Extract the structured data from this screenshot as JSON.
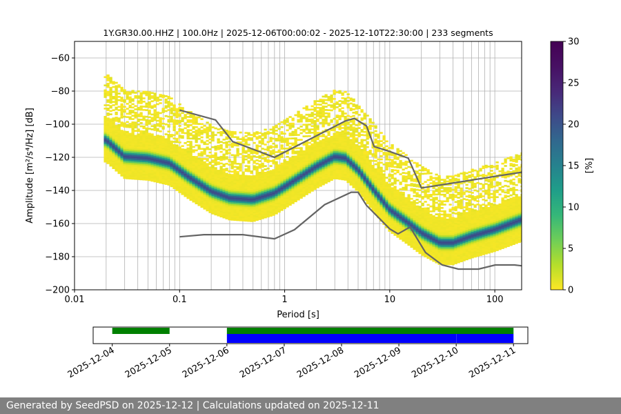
{
  "chart_data": [
    {
      "type": "heatmap",
      "title": "1Y.GR30.00.HHZ | 100.0Hz | 2025-12-06T00:00:02 - 2025-12-10T22:30:00 | 233 segments",
      "xlabel": "Period [s]",
      "ylabel": "Amplitude [m²/s⁴/Hz] [dB]",
      "x_scale": "log",
      "xlim": [
        0.01,
        180
      ],
      "ylim": [
        -200,
        -50
      ],
      "x_ticks": [
        0.01,
        0.1,
        1,
        10,
        100
      ],
      "x_tick_labels": [
        "0.01",
        "0.1",
        "1",
        "10",
        "100"
      ],
      "y_ticks": [
        -200,
        -180,
        -160,
        -140,
        -120,
        -100,
        -80,
        -60
      ],
      "y_tick_labels": [
        "−200",
        "−180",
        "−160",
        "−140",
        "−120",
        "−100",
        "−80",
        "−60"
      ],
      "grid": true,
      "colormap": "viridis_r",
      "colorbar": {
        "label": "[%]",
        "min": 0,
        "max": 30,
        "ticks": [
          0,
          5,
          10,
          15,
          20,
          25,
          30
        ]
      },
      "mode_curve": {
        "period": [
          0.02,
          0.03,
          0.05,
          0.08,
          0.12,
          0.2,
          0.3,
          0.5,
          0.8,
          1.2,
          2,
          3,
          3.8,
          5,
          7,
          10,
          15,
          20,
          30,
          40,
          60,
          100,
          180
        ],
        "db": [
          -110,
          -120,
          -121,
          -124,
          -132,
          -141,
          -145,
          -146,
          -142,
          -135,
          -126,
          -120,
          -121,
          -128,
          -140,
          -152,
          -160,
          -166,
          -172,
          -172,
          -168,
          -164,
          -158
        ]
      },
      "spread_db": {
        "lower": 13,
        "upper_main": 14,
        "upper_scatter": 40
      },
      "noise_model_high": {
        "period": [
          0.1,
          0.22,
          0.32,
          0.8,
          3.8,
          4.6,
          6,
          7.1,
          10,
          15,
          20,
          180
        ],
        "db": [
          -91.5,
          -97.4,
          -110.5,
          -120,
          -98,
          -96.5,
          -101,
          -113.5,
          -116.5,
          -120.5,
          -138.5,
          -129
        ]
      },
      "noise_model_low": {
        "period": [
          0.1,
          0.17,
          0.4,
          0.8,
          1.24,
          2.4,
          4.3,
          5,
          6,
          10,
          12,
          15.6,
          21.9,
          31.6,
          45,
          70,
          101,
          154,
          180
        ],
        "db": [
          -168,
          -166.7,
          -166.7,
          -169.2,
          -163.7,
          -148.6,
          -141.1,
          -141.1,
          -149,
          -163.2,
          -166.2,
          -162.1,
          -177.5,
          -185,
          -187.5,
          -187.5,
          -185,
          -185,
          -185.5
        ]
      },
      "line_color": "#646464"
    },
    {
      "type": "timeline",
      "x_range": [
        "2025-12-03T16:00",
        "2025-12-11T06:00"
      ],
      "x_ticks": [
        "2025-12-04",
        "2025-12-05",
        "2025-12-06",
        "2025-12-07",
        "2025-12-08",
        "2025-12-09",
        "2025-12-10",
        "2025-12-11"
      ],
      "bars": [
        {
          "row": "top",
          "color": "#008000",
          "start": "2025-12-04T00:00",
          "end": "2025-12-05T00:00"
        },
        {
          "row": "top",
          "color": "#008000",
          "start": "2025-12-06T00:00",
          "end": "2025-12-11T00:00"
        },
        {
          "row": "bottom",
          "color": "#0000ff",
          "start": "2025-12-06T00:00",
          "end": "2025-12-10T00:00"
        },
        {
          "row": "bottom",
          "color": "#0000ff",
          "start": "2025-12-10T00:02",
          "end": "2025-12-11T00:00"
        }
      ]
    }
  ],
  "footer": {
    "text": "Generated by SeedPSD on 2025-12-12 | Calculations updated on 2025-12-11"
  }
}
